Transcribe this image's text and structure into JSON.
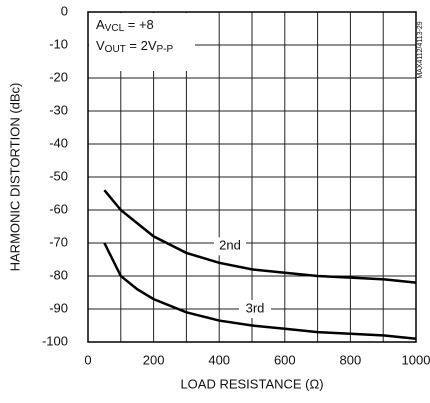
{
  "chart_data": {
    "type": "line",
    "xlabel": "LOAD RESISTANCE (Ω)",
    "ylabel": "HARMONIC DISTORTION (dBc)",
    "side_note": "MAX4112/4113-29",
    "annotation": [
      [
        {
          "text": "A"
        },
        {
          "text": "VCL",
          "sub": true
        },
        {
          "text": " = +8"
        }
      ],
      [
        {
          "text": "V"
        },
        {
          "text": "OUT",
          "sub": true
        },
        {
          "text": " = 2V"
        },
        {
          "text": "P-P",
          "sub": true
        }
      ]
    ],
    "xlim": [
      0,
      1000
    ],
    "xticks": [
      0,
      200,
      400,
      600,
      800,
      1000
    ],
    "x_minor_ticks": [
      100,
      300,
      500,
      700,
      900
    ],
    "ylim": [
      -100,
      0
    ],
    "yticks": [
      0,
      -10,
      -20,
      -30,
      -40,
      -50,
      -60,
      -70,
      -80,
      -90,
      -100
    ],
    "grid": true,
    "series": [
      {
        "name": "2nd",
        "color": "#000000",
        "x": [
          50,
          100,
          200,
          300,
          400,
          500,
          600,
          700,
          800,
          900,
          1000
        ],
        "values": [
          -54,
          -60,
          -68,
          -73,
          -76,
          -78,
          -79,
          -80,
          -80.5,
          -81,
          -82
        ]
      },
      {
        "name": "3rd",
        "color": "#000000",
        "x": [
          50,
          100,
          150,
          200,
          300,
          400,
          500,
          600,
          700,
          800,
          900,
          1000
        ],
        "values": [
          -70,
          -80,
          -84,
          -87,
          -91,
          -93.5,
          -95,
          -96,
          -97,
          -97.5,
          -98,
          -99
        ]
      }
    ]
  }
}
